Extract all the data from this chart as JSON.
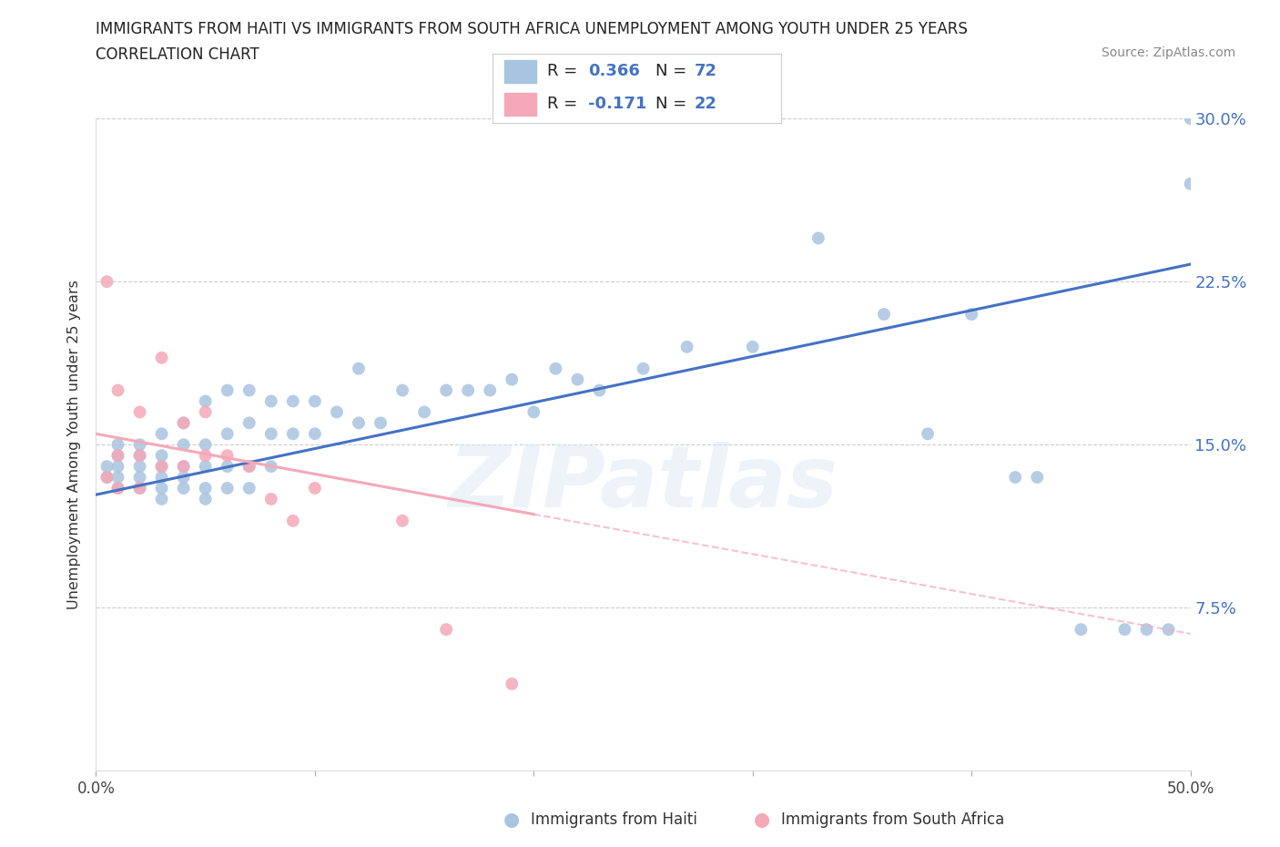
{
  "title_line1": "IMMIGRANTS FROM HAITI VS IMMIGRANTS FROM SOUTH AFRICA UNEMPLOYMENT AMONG YOUTH UNDER 25 YEARS",
  "title_line2": "CORRELATION CHART",
  "source_text": "Source: ZipAtlas.com",
  "ylabel": "Unemployment Among Youth under 25 years",
  "xlim": [
    0.0,
    0.5
  ],
  "ylim": [
    0.0,
    0.3
  ],
  "xticks": [
    0.0,
    0.1,
    0.2,
    0.3,
    0.4,
    0.5
  ],
  "xticklabels": [
    "0.0%",
    "",
    "",
    "",
    "",
    "50.0%"
  ],
  "ytick_vals": [
    0.0,
    0.075,
    0.15,
    0.225,
    0.3
  ],
  "ytick_labels": [
    "",
    "7.5%",
    "15.0%",
    "22.5%",
    "30.0%"
  ],
  "grid_color": "#cccccc",
  "background_color": "#ffffff",
  "haiti_scatter_color": "#a8c4e0",
  "sa_scatter_color": "#f4a8b8",
  "haiti_line_color": "#4472c4",
  "sa_line_color": "#f4a8b8",
  "ytick_color": "#4472c4",
  "R_haiti": "0.366",
  "N_haiti": "72",
  "R_sa": "-0.171",
  "N_sa": "22",
  "R_N_color": "#4472c4",
  "watermark": "ZIPatlas",
  "legend_label_haiti": "Immigrants from Haiti",
  "legend_label_sa": "Immigrants from South Africa",
  "haiti_x": [
    0.005,
    0.005,
    0.01,
    0.01,
    0.01,
    0.01,
    0.01,
    0.02,
    0.02,
    0.02,
    0.02,
    0.02,
    0.03,
    0.03,
    0.03,
    0.03,
    0.03,
    0.03,
    0.04,
    0.04,
    0.04,
    0.04,
    0.04,
    0.05,
    0.05,
    0.05,
    0.05,
    0.05,
    0.06,
    0.06,
    0.06,
    0.06,
    0.07,
    0.07,
    0.07,
    0.07,
    0.08,
    0.08,
    0.08,
    0.09,
    0.09,
    0.1,
    0.1,
    0.11,
    0.12,
    0.12,
    0.13,
    0.14,
    0.15,
    0.16,
    0.17,
    0.18,
    0.19,
    0.2,
    0.21,
    0.22,
    0.23,
    0.25,
    0.27,
    0.3,
    0.33,
    0.36,
    0.38,
    0.4,
    0.43,
    0.45,
    0.47,
    0.48,
    0.49,
    0.5,
    0.5,
    0.42
  ],
  "haiti_y": [
    0.135,
    0.14,
    0.13,
    0.135,
    0.14,
    0.145,
    0.15,
    0.13,
    0.135,
    0.14,
    0.145,
    0.15,
    0.125,
    0.13,
    0.135,
    0.14,
    0.145,
    0.155,
    0.13,
    0.135,
    0.14,
    0.15,
    0.16,
    0.125,
    0.13,
    0.14,
    0.15,
    0.17,
    0.13,
    0.14,
    0.155,
    0.175,
    0.13,
    0.14,
    0.16,
    0.175,
    0.14,
    0.155,
    0.17,
    0.155,
    0.17,
    0.155,
    0.17,
    0.165,
    0.16,
    0.185,
    0.16,
    0.175,
    0.165,
    0.175,
    0.175,
    0.175,
    0.18,
    0.165,
    0.185,
    0.18,
    0.175,
    0.185,
    0.195,
    0.195,
    0.245,
    0.21,
    0.155,
    0.21,
    0.135,
    0.065,
    0.065,
    0.065,
    0.065,
    0.3,
    0.27,
    0.135
  ],
  "sa_x": [
    0.005,
    0.005,
    0.01,
    0.01,
    0.01,
    0.02,
    0.02,
    0.02,
    0.03,
    0.03,
    0.04,
    0.04,
    0.05,
    0.05,
    0.06,
    0.07,
    0.08,
    0.09,
    0.1,
    0.14,
    0.16,
    0.19
  ],
  "sa_y": [
    0.135,
    0.225,
    0.13,
    0.145,
    0.175,
    0.13,
    0.145,
    0.165,
    0.14,
    0.19,
    0.14,
    0.16,
    0.145,
    0.165,
    0.145,
    0.14,
    0.125,
    0.115,
    0.13,
    0.115,
    0.065,
    0.04
  ],
  "haiti_trend_x0": 0.0,
  "haiti_trend_y0": 0.127,
  "haiti_trend_x1": 0.5,
  "haiti_trend_y1": 0.233,
  "sa_trend_solid_x0": 0.0,
  "sa_trend_solid_y0": 0.155,
  "sa_trend_solid_x1": 0.2,
  "sa_trend_solid_y1": 0.118,
  "sa_trend_dash_x0": 0.2,
  "sa_trend_dash_y0": 0.118,
  "sa_trend_dash_x1": 0.5,
  "sa_trend_dash_y1": 0.063
}
